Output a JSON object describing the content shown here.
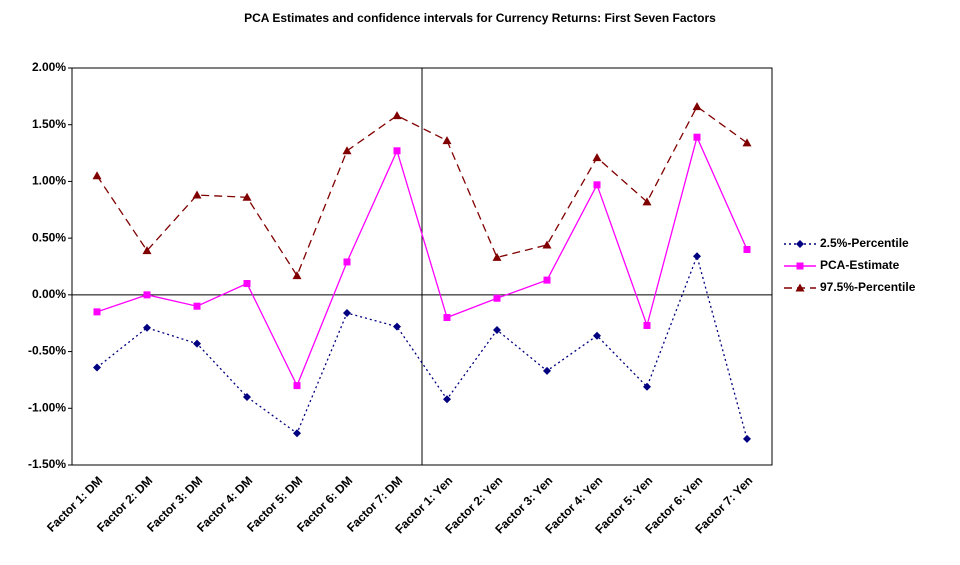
{
  "chart_data": {
    "type": "line",
    "title": "PCA Estimates and confidence intervals for Currency Returns: First Seven Factors",
    "categories": [
      "Factor 1: DM",
      "Factor 2: DM",
      "Factor 3: DM",
      "Factor 4: DM",
      "Factor 5: DM",
      "Factor 6: DM",
      "Factor 7: DM",
      "Factor 1: Yen",
      "Factor 2: Yen",
      "Factor 3: Yen",
      "Factor 4: Yen",
      "Factor 5: Yen",
      "Factor 6: Yen",
      "Factor 7: Yen"
    ],
    "series": [
      {
        "name": "2.5%-Percentile",
        "color": "#000080",
        "marker": "diamond",
        "dash": "dotted",
        "values": [
          -0.64,
          -0.29,
          -0.43,
          -0.9,
          -1.22,
          -0.16,
          -0.28,
          -0.92,
          -0.31,
          -0.67,
          -0.36,
          -0.81,
          0.34,
          -1.27
        ]
      },
      {
        "name": "PCA-Estimate",
        "color": "#ff00ff",
        "marker": "square",
        "dash": "solid",
        "values": [
          -0.15,
          0.0,
          -0.1,
          0.1,
          -0.8,
          0.29,
          1.27,
          -0.2,
          -0.03,
          0.13,
          0.97,
          -0.27,
          1.39,
          0.4
        ]
      },
      {
        "name": "97.5%-Percentile",
        "color": "#800000",
        "marker": "triangle",
        "dash": "dashed",
        "values": [
          1.05,
          0.39,
          0.88,
          0.86,
          0.17,
          1.27,
          1.58,
          1.36,
          0.33,
          0.44,
          1.21,
          0.82,
          1.66,
          1.34
        ]
      }
    ],
    "ylim": [
      -1.5,
      2.0
    ],
    "yticks": [
      {
        "value": -1.5,
        "label": "-1.50%"
      },
      {
        "value": -1.0,
        "label": "-1.00%"
      },
      {
        "value": -0.5,
        "label": "-0.50%"
      },
      {
        "value": 0,
        "label": "0.00%"
      },
      {
        "value": 0.5,
        "label": "0.50%"
      },
      {
        "value": 1.0,
        "label": "1.00%"
      },
      {
        "value": 1.5,
        "label": "1.50%"
      },
      {
        "value": 2.0,
        "label": "2.00%"
      }
    ],
    "grid": false,
    "legend": "right"
  }
}
